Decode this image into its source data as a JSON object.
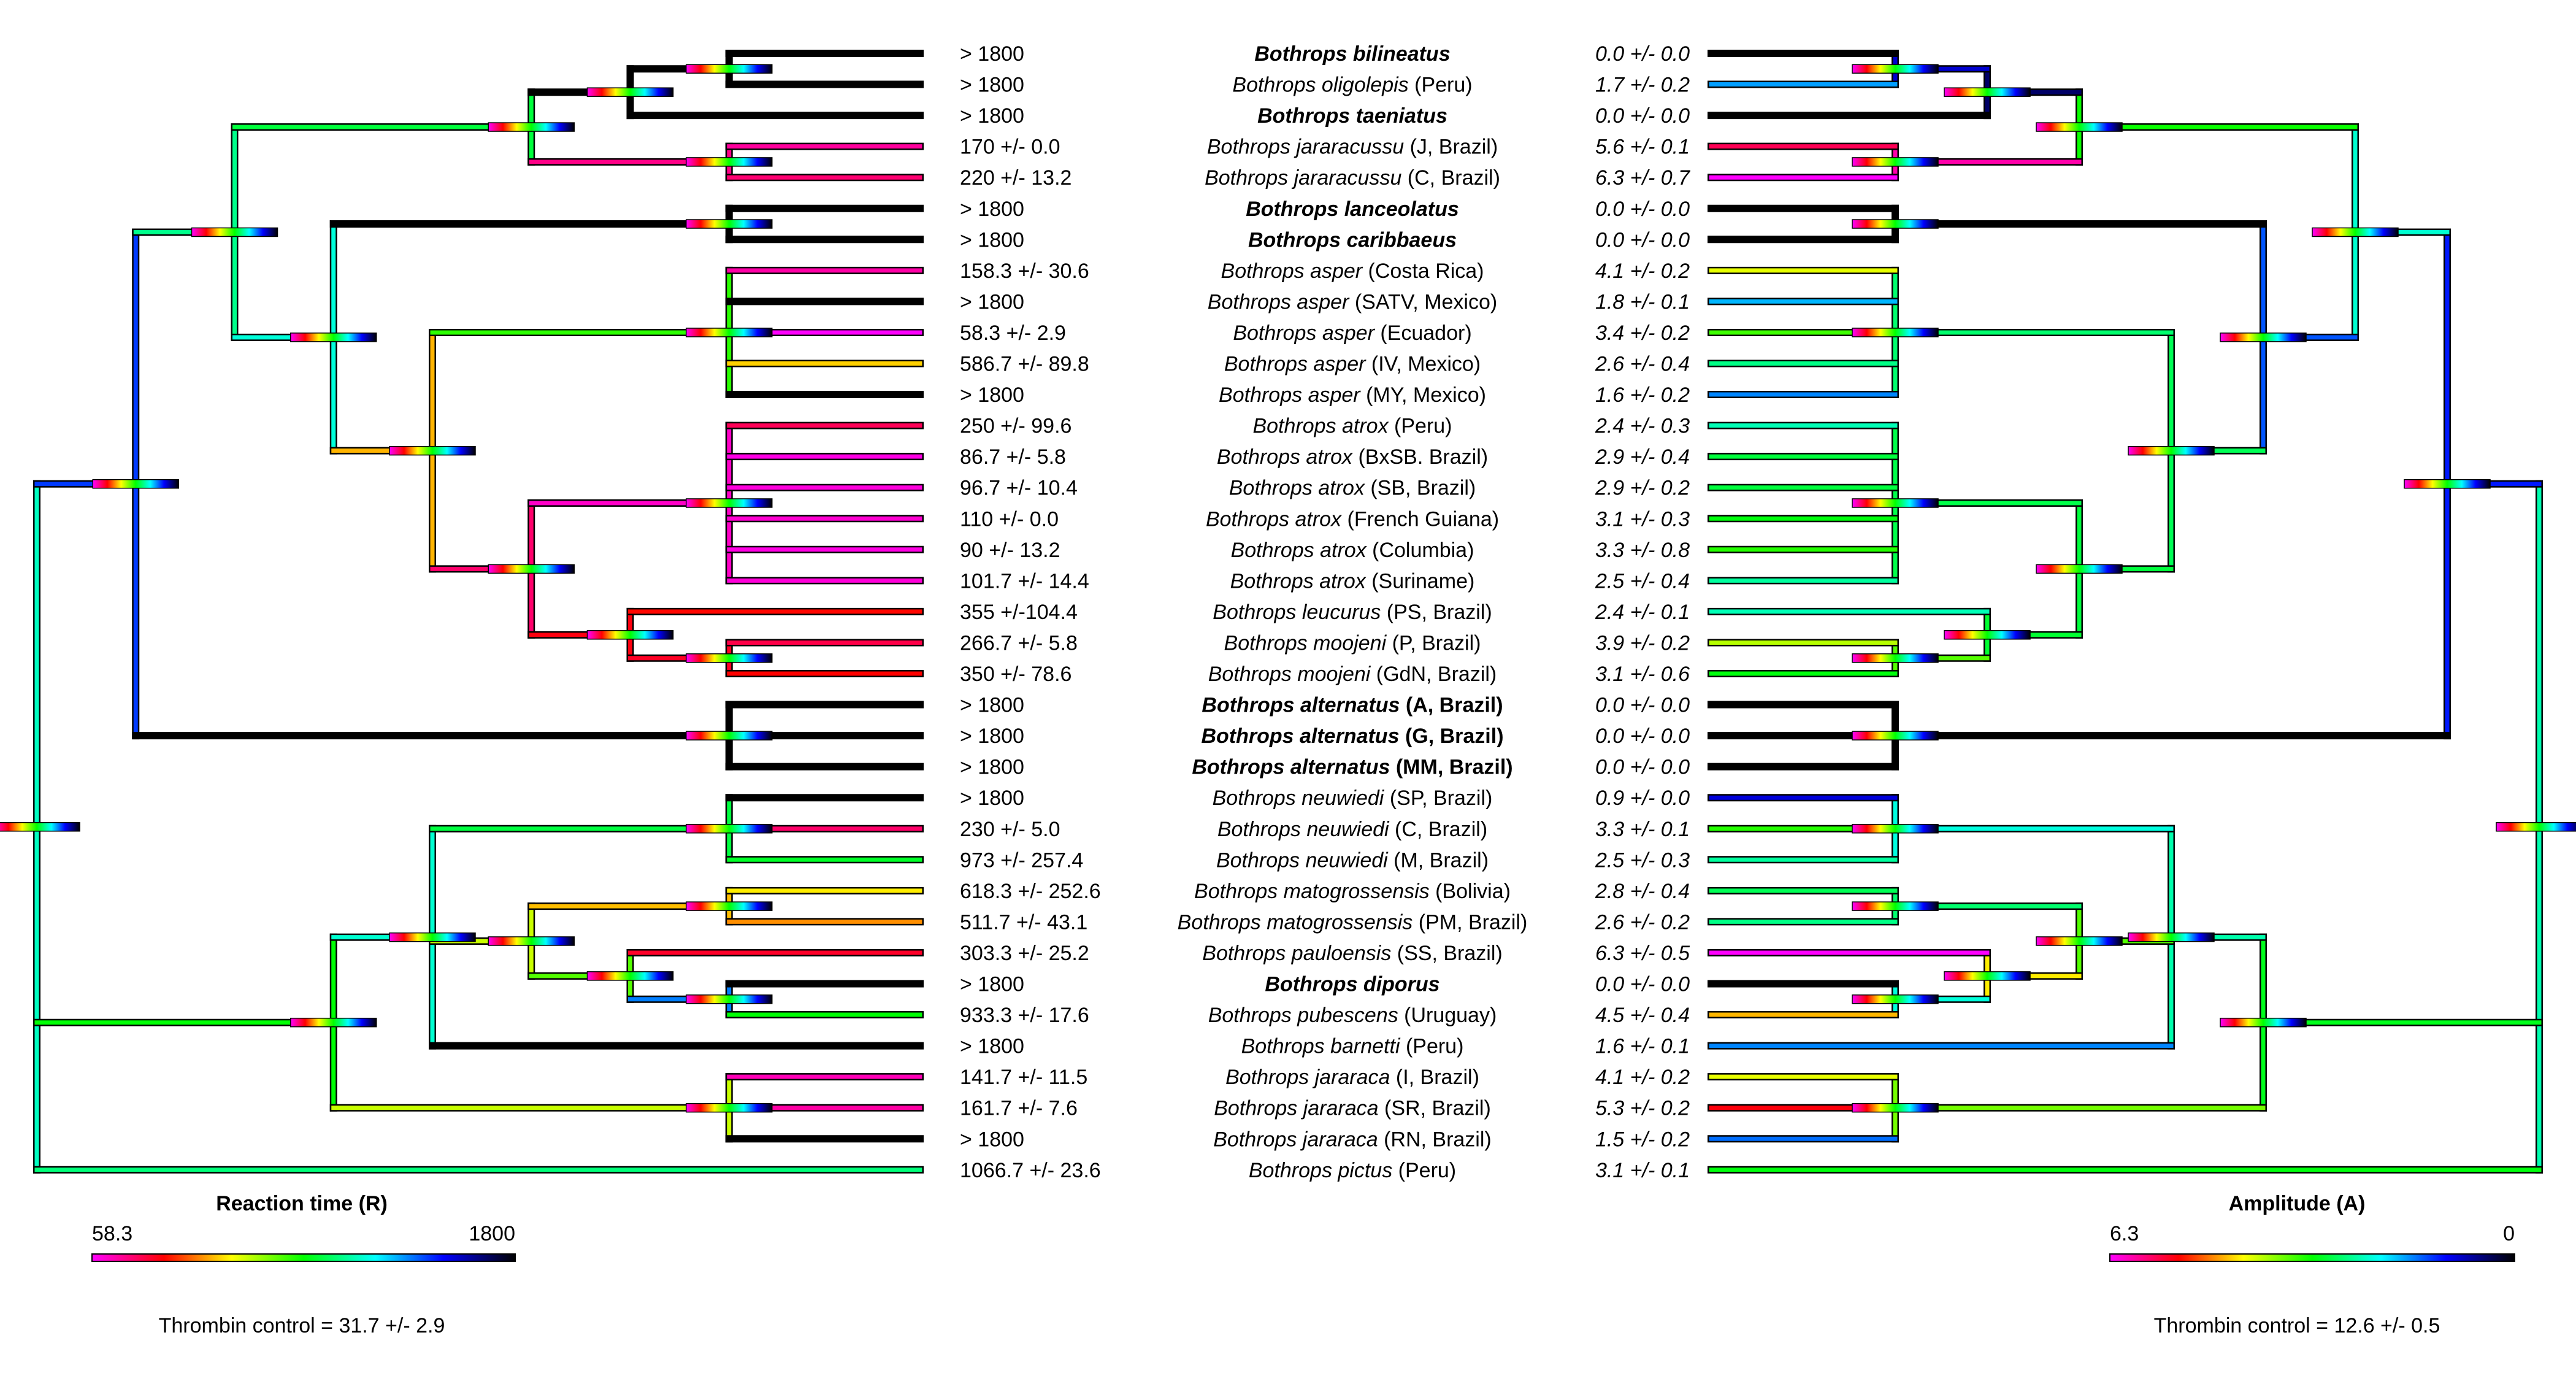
{
  "colors": {
    "r_scale": [
      "#ff00ff",
      "#ff0000",
      "#ffff00",
      "#00ff00",
      "#00ffff",
      "#0000ff",
      "#000000"
    ],
    "a_scale": [
      "#ff00ff",
      "#ff0000",
      "#ffff00",
      "#00ff00",
      "#00ffff",
      "#0000ff",
      "#000000"
    ],
    "tree_outline": "#000000",
    "text": "#000000",
    "background": "#ffffff"
  },
  "legend_left": {
    "title": "Reaction time (R)",
    "min_label": "58.3",
    "max_label": "1800",
    "control": "Thrombin control = 31.7 +/- 2.9"
  },
  "legend_right": {
    "title": "Amplitude (A)",
    "min_label": "6.3",
    "max_label": "0",
    "control": "Thrombin control = 12.6 +/- 0.5"
  },
  "taxa": [
    {
      "genus": "Bothrops",
      "species": "bilineatus",
      "locality": "",
      "bold": true,
      "r": "> 1800",
      "a": "0.0 +/- 0.0",
      "rv": 1800,
      "av": 0.0
    },
    {
      "genus": "Bothrops",
      "species": "oligolepis",
      "locality": "(Peru)",
      "bold": false,
      "r": "> 1800",
      "a": "1.7 +/- 0.2",
      "rv": 1800,
      "av": 1.7
    },
    {
      "genus": "Bothrops",
      "species": "taeniatus",
      "locality": "",
      "bold": true,
      "r": "> 1800",
      "a": "0.0 +/- 0.0",
      "rv": 1800,
      "av": 0.0
    },
    {
      "genus": "Bothrops",
      "species": "jararacussu",
      "locality": "(J, Brazil)",
      "bold": false,
      "r": "170 +/- 0.0",
      "a": "5.6 +/- 0.1",
      "rv": 170,
      "av": 5.6
    },
    {
      "genus": "Bothrops",
      "species": "jararacussu",
      "locality": "(C, Brazil)",
      "bold": false,
      "r": "220 +/- 13.2",
      "a": "6.3 +/- 0.7",
      "rv": 220,
      "av": 6.3
    },
    {
      "genus": "Bothrops",
      "species": "lanceolatus",
      "locality": "",
      "bold": true,
      "r": "> 1800",
      "a": "0.0 +/- 0.0",
      "rv": 1800,
      "av": 0.0
    },
    {
      "genus": "Bothrops",
      "species": "caribbaeus",
      "locality": "",
      "bold": true,
      "r": "> 1800",
      "a": "0.0 +/- 0.0",
      "rv": 1800,
      "av": 0.0
    },
    {
      "genus": "Bothrops",
      "species": "asper",
      "locality": "(Costa Rica)",
      "bold": false,
      "r": "158.3 +/- 30.6",
      "a": "4.1 +/- 0.2",
      "rv": 158.3,
      "av": 4.1
    },
    {
      "genus": "Bothrops",
      "species": "asper",
      "locality": "(SATV, Mexico)",
      "bold": false,
      "r": "> 1800",
      "a": "1.8 +/- 0.1",
      "rv": 1800,
      "av": 1.8
    },
    {
      "genus": "Bothrops",
      "species": "asper",
      "locality": "(Ecuador)",
      "bold": false,
      "r": "58.3 +/- 2.9",
      "a": "3.4 +/- 0.2",
      "rv": 58.3,
      "av": 3.4
    },
    {
      "genus": "Bothrops",
      "species": "asper",
      "locality": "(IV, Mexico)",
      "bold": false,
      "r": "586.7 +/- 89.8",
      "a": "2.6 +/- 0.4",
      "rv": 586.7,
      "av": 2.6
    },
    {
      "genus": "Bothrops",
      "species": "asper",
      "locality": "(MY, Mexico)",
      "bold": false,
      "r": "> 1800",
      "a": "1.6 +/- 0.2",
      "rv": 1800,
      "av": 1.6
    },
    {
      "genus": "Bothrops",
      "species": "atrox",
      "locality": "(Peru)",
      "bold": false,
      "r": "250 +/- 99.6",
      "a": "2.4 +/- 0.3",
      "rv": 250,
      "av": 2.4
    },
    {
      "genus": "Bothrops",
      "species": "atrox",
      "locality": "(BxSB. Brazil)",
      "bold": false,
      "r": "86.7 +/- 5.8",
      "a": "2.9 +/- 0.4",
      "rv": 86.7,
      "av": 2.9
    },
    {
      "genus": "Bothrops",
      "species": "atrox",
      "locality": "(SB, Brazil)",
      "bold": false,
      "r": "96.7 +/- 10.4",
      "a": "2.9 +/- 0.2",
      "rv": 96.7,
      "av": 2.9
    },
    {
      "genus": "Bothrops",
      "species": "atrox",
      "locality": "(French Guiana)",
      "bold": false,
      "r": "110 +/- 0.0",
      "a": "3.1 +/- 0.3",
      "rv": 110,
      "av": 3.1
    },
    {
      "genus": "Bothrops",
      "species": "atrox",
      "locality": "(Columbia)",
      "bold": false,
      "r": "90 +/- 13.2",
      "a": "3.3 +/- 0.8",
      "rv": 90,
      "av": 3.3
    },
    {
      "genus": "Bothrops",
      "species": "atrox",
      "locality": "(Suriname)",
      "bold": false,
      "r": "101.7 +/- 14.4",
      "a": "2.5 +/- 0.4",
      "rv": 101.7,
      "av": 2.5
    },
    {
      "genus": "Bothrops",
      "species": "leucurus",
      "locality": "(PS, Brazil)",
      "bold": false,
      "r": "355 +/-104.4",
      "a": "2.4 +/- 0.1",
      "rv": 355,
      "av": 2.4
    },
    {
      "genus": "Bothrops",
      "species": "moojeni",
      "locality": "(P, Brazil)",
      "bold": false,
      "r": "266.7 +/- 5.8",
      "a": "3.9 +/- 0.2",
      "rv": 266.7,
      "av": 3.9
    },
    {
      "genus": "Bothrops",
      "species": "moojeni",
      "locality": "(GdN, Brazil)",
      "bold": false,
      "r": "350 +/- 78.6",
      "a": "3.1 +/- 0.6",
      "rv": 350,
      "av": 3.1
    },
    {
      "genus": "Bothrops",
      "species": "alternatus",
      "locality": "(A, Brazil)",
      "bold": true,
      "r": "> 1800",
      "a": "0.0 +/- 0.0",
      "rv": 1800,
      "av": 0.0
    },
    {
      "genus": "Bothrops",
      "species": "alternatus",
      "locality": "(G, Brazil)",
      "bold": true,
      "r": "> 1800",
      "a": "0.0 +/- 0.0",
      "rv": 1800,
      "av": 0.0
    },
    {
      "genus": "Bothrops",
      "species": "alternatus",
      "locality": "(MM, Brazil)",
      "bold": true,
      "r": "> 1800",
      "a": "0.0 +/- 0.0",
      "rv": 1800,
      "av": 0.0
    },
    {
      "genus": "Bothrops",
      "species": "neuwiedi",
      "locality": "(SP, Brazil)",
      "bold": false,
      "r": "> 1800",
      "a": "0.9 +/- 0.0",
      "rv": 1800,
      "av": 0.9
    },
    {
      "genus": "Bothrops",
      "species": "neuwiedi",
      "locality": "(C, Brazil)",
      "bold": false,
      "r": "230 +/- 5.0",
      "a": "3.3 +/- 0.1",
      "rv": 230,
      "av": 3.3
    },
    {
      "genus": "Bothrops",
      "species": "neuwiedi",
      "locality": "(M, Brazil)",
      "bold": false,
      "r": "973 +/- 257.4",
      "a": "2.5 +/- 0.3",
      "rv": 973,
      "av": 2.5
    },
    {
      "genus": "Bothrops",
      "species": "matogrossensis",
      "locality": "(Bolivia)",
      "bold": false,
      "r": "618.3 +/- 252.6",
      "a": "2.8 +/- 0.4",
      "rv": 618.3,
      "av": 2.8
    },
    {
      "genus": "Bothrops",
      "species": "matogrossensis",
      "locality": "(PM, Brazil)",
      "bold": false,
      "r": "511.7 +/- 43.1",
      "a": "2.6 +/- 0.2",
      "rv": 511.7,
      "av": 2.6
    },
    {
      "genus": "Bothrops",
      "species": "pauloensis",
      "locality": "(SS, Brazil)",
      "bold": false,
      "r": "303.3 +/- 25.2",
      "a": "6.3 +/- 0.5",
      "rv": 303.3,
      "av": 6.3
    },
    {
      "genus": "Bothrops",
      "species": "diporus",
      "locality": "",
      "bold": true,
      "r": "> 1800",
      "a": "0.0 +/- 0.0",
      "rv": 1800,
      "av": 0.0
    },
    {
      "genus": "Bothrops",
      "species": "pubescens",
      "locality": "(Uruguay)",
      "bold": false,
      "r": "933.3 +/- 17.6",
      "a": "4.5 +/- 0.4",
      "rv": 933.3,
      "av": 4.5
    },
    {
      "genus": "Bothrops",
      "species": "barnetti",
      "locality": "(Peru)",
      "bold": false,
      "r": "> 1800",
      "a": "1.6 +/- 0.1",
      "rv": 1800,
      "av": 1.6
    },
    {
      "genus": "Bothrops",
      "species": "jararaca",
      "locality": "(I, Brazil)",
      "bold": false,
      "r": "141.7 +/- 11.5",
      "a": "4.1 +/- 0.2",
      "rv": 141.7,
      "av": 4.1
    },
    {
      "genus": "Bothrops",
      "species": "jararaca",
      "locality": "(SR, Brazil)",
      "bold": false,
      "r": "161.7 +/- 7.6",
      "a": "5.3 +/- 0.2",
      "rv": 161.7,
      "av": 5.3
    },
    {
      "genus": "Bothrops",
      "species": "jararaca",
      "locality": "(RN, Brazil)",
      "bold": false,
      "r": "> 1800",
      "a": "1.5 +/- 0.2",
      "rv": 1800,
      "av": 1.5
    },
    {
      "genus": "Bothrops",
      "species": "pictus",
      "locality": "(Peru)",
      "bold": false,
      "r": "1066.7 +/- 23.6",
      "a": "3.1 +/- 0.1",
      "rv": 1066.7,
      "av": 3.1
    }
  ]
}
